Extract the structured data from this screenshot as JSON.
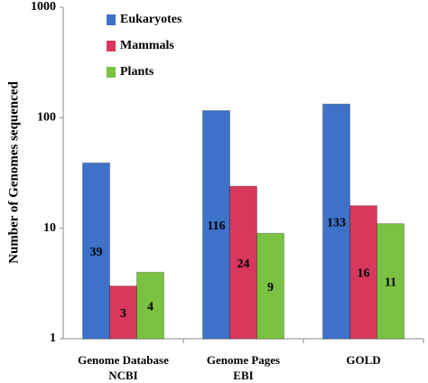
{
  "chart_data": {
    "type": "bar",
    "y_label": "Number of Genomes sequenced",
    "categories": [
      "Genome Database\nNCBI",
      "Genome Pages\nEBI",
      "GOLD"
    ],
    "series": [
      {
        "name": "Eukaryotes",
        "color": "#3d72c8",
        "values": [
          39,
          116,
          133
        ]
      },
      {
        "name": "Mammals",
        "color": "#d8385c",
        "values": [
          3,
          24,
          16
        ]
      },
      {
        "name": "Plants",
        "color": "#7cc242",
        "values": [
          4,
          9,
          11
        ]
      }
    ],
    "ylim": [
      1,
      1000
    ],
    "yticks": [
      1,
      10,
      100,
      1000
    ],
    "log_scale": true,
    "legend": "top-left"
  }
}
